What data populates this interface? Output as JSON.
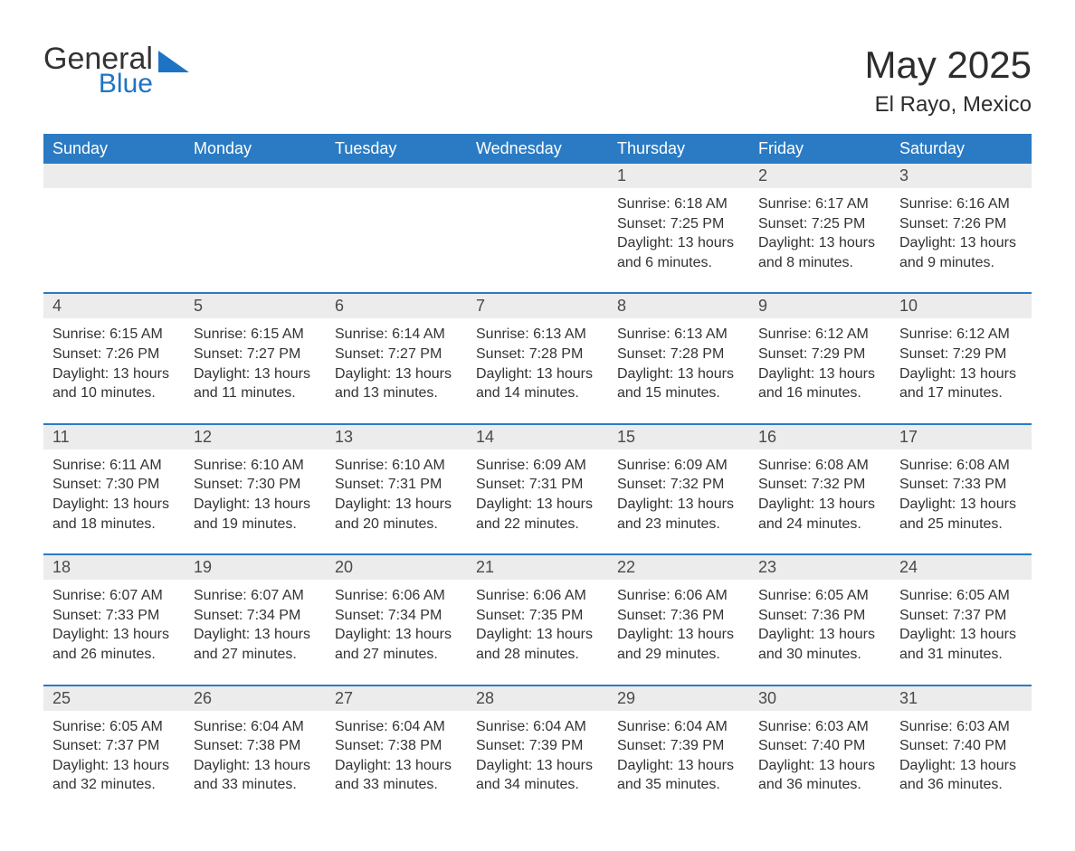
{
  "logo": {
    "line1": "General",
    "line2": "Blue"
  },
  "header": {
    "title": "May 2025",
    "location": "El Rayo, Mexico"
  },
  "colors": {
    "header_bg": "#2a7bc4",
    "header_text": "#ffffff",
    "daynum_bg": "#ececec",
    "daynum_text": "#4a4a4a",
    "rule": "#2a7bc4",
    "logo_blue": "#1e74c4",
    "body_text": "#333333"
  },
  "calendar": {
    "type": "table",
    "columns": [
      "Sunday",
      "Monday",
      "Tuesday",
      "Wednesday",
      "Thursday",
      "Friday",
      "Saturday"
    ],
    "weeks": [
      [
        null,
        null,
        null,
        null,
        {
          "n": "1",
          "sunrise": "6:18 AM",
          "sunset": "7:25 PM",
          "daylight": "13 hours and 6 minutes."
        },
        {
          "n": "2",
          "sunrise": "6:17 AM",
          "sunset": "7:25 PM",
          "daylight": "13 hours and 8 minutes."
        },
        {
          "n": "3",
          "sunrise": "6:16 AM",
          "sunset": "7:26 PM",
          "daylight": "13 hours and 9 minutes."
        }
      ],
      [
        {
          "n": "4",
          "sunrise": "6:15 AM",
          "sunset": "7:26 PM",
          "daylight": "13 hours and 10 minutes."
        },
        {
          "n": "5",
          "sunrise": "6:15 AM",
          "sunset": "7:27 PM",
          "daylight": "13 hours and 11 minutes."
        },
        {
          "n": "6",
          "sunrise": "6:14 AM",
          "sunset": "7:27 PM",
          "daylight": "13 hours and 13 minutes."
        },
        {
          "n": "7",
          "sunrise": "6:13 AM",
          "sunset": "7:28 PM",
          "daylight": "13 hours and 14 minutes."
        },
        {
          "n": "8",
          "sunrise": "6:13 AM",
          "sunset": "7:28 PM",
          "daylight": "13 hours and 15 minutes."
        },
        {
          "n": "9",
          "sunrise": "6:12 AM",
          "sunset": "7:29 PM",
          "daylight": "13 hours and 16 minutes."
        },
        {
          "n": "10",
          "sunrise": "6:12 AM",
          "sunset": "7:29 PM",
          "daylight": "13 hours and 17 minutes."
        }
      ],
      [
        {
          "n": "11",
          "sunrise": "6:11 AM",
          "sunset": "7:30 PM",
          "daylight": "13 hours and 18 minutes."
        },
        {
          "n": "12",
          "sunrise": "6:10 AM",
          "sunset": "7:30 PM",
          "daylight": "13 hours and 19 minutes."
        },
        {
          "n": "13",
          "sunrise": "6:10 AM",
          "sunset": "7:31 PM",
          "daylight": "13 hours and 20 minutes."
        },
        {
          "n": "14",
          "sunrise": "6:09 AM",
          "sunset": "7:31 PM",
          "daylight": "13 hours and 22 minutes."
        },
        {
          "n": "15",
          "sunrise": "6:09 AM",
          "sunset": "7:32 PM",
          "daylight": "13 hours and 23 minutes."
        },
        {
          "n": "16",
          "sunrise": "6:08 AM",
          "sunset": "7:32 PM",
          "daylight": "13 hours and 24 minutes."
        },
        {
          "n": "17",
          "sunrise": "6:08 AM",
          "sunset": "7:33 PM",
          "daylight": "13 hours and 25 minutes."
        }
      ],
      [
        {
          "n": "18",
          "sunrise": "6:07 AM",
          "sunset": "7:33 PM",
          "daylight": "13 hours and 26 minutes."
        },
        {
          "n": "19",
          "sunrise": "6:07 AM",
          "sunset": "7:34 PM",
          "daylight": "13 hours and 27 minutes."
        },
        {
          "n": "20",
          "sunrise": "6:06 AM",
          "sunset": "7:34 PM",
          "daylight": "13 hours and 27 minutes."
        },
        {
          "n": "21",
          "sunrise": "6:06 AM",
          "sunset": "7:35 PM",
          "daylight": "13 hours and 28 minutes."
        },
        {
          "n": "22",
          "sunrise": "6:06 AM",
          "sunset": "7:36 PM",
          "daylight": "13 hours and 29 minutes."
        },
        {
          "n": "23",
          "sunrise": "6:05 AM",
          "sunset": "7:36 PM",
          "daylight": "13 hours and 30 minutes."
        },
        {
          "n": "24",
          "sunrise": "6:05 AM",
          "sunset": "7:37 PM",
          "daylight": "13 hours and 31 minutes."
        }
      ],
      [
        {
          "n": "25",
          "sunrise": "6:05 AM",
          "sunset": "7:37 PM",
          "daylight": "13 hours and 32 minutes."
        },
        {
          "n": "26",
          "sunrise": "6:04 AM",
          "sunset": "7:38 PM",
          "daylight": "13 hours and 33 minutes."
        },
        {
          "n": "27",
          "sunrise": "6:04 AM",
          "sunset": "7:38 PM",
          "daylight": "13 hours and 33 minutes."
        },
        {
          "n": "28",
          "sunrise": "6:04 AM",
          "sunset": "7:39 PM",
          "daylight": "13 hours and 34 minutes."
        },
        {
          "n": "29",
          "sunrise": "6:04 AM",
          "sunset": "7:39 PM",
          "daylight": "13 hours and 35 minutes."
        },
        {
          "n": "30",
          "sunrise": "6:03 AM",
          "sunset": "7:40 PM",
          "daylight": "13 hours and 36 minutes."
        },
        {
          "n": "31",
          "sunrise": "6:03 AM",
          "sunset": "7:40 PM",
          "daylight": "13 hours and 36 minutes."
        }
      ]
    ],
    "labels": {
      "sunrise": "Sunrise:",
      "sunset": "Sunset:",
      "daylight": "Daylight:"
    }
  }
}
